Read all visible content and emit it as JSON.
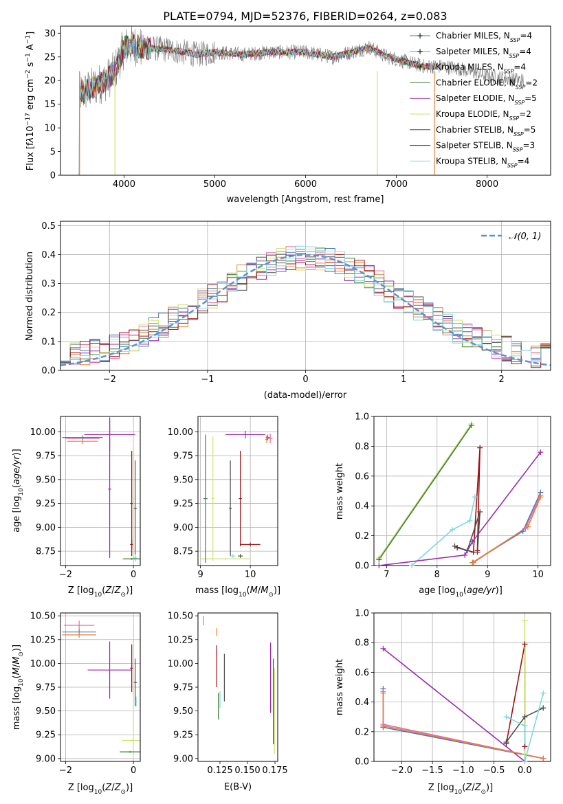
{
  "chart_data": [
    {
      "id": "spectrum",
      "type": "line",
      "title": "PLATE=0794, MJD=52376, FIBERID=0264, z=0.083",
      "xlabel": "wavelength [Angstrom, rest frame]",
      "ylabel": "Flux [f_λ 10^-17 erg cm^-2 s^-1 A^-1]",
      "xlim": [
        3300,
        8700
      ],
      "ylim": [
        0,
        31.5
      ],
      "xticks": [
        4000,
        5000,
        6000,
        7000,
        8000
      ],
      "yticks": [
        0,
        5,
        10,
        15,
        20,
        25,
        30
      ],
      "grid": false,
      "legend_position": "top-right",
      "data_range": [
        3500,
        8400
      ],
      "continuum": {
        "x": [
          3500,
          3600,
          3700,
          3800,
          3900,
          4000,
          4100,
          4200,
          4500,
          4800,
          5000,
          5300,
          5600,
          6000,
          6300,
          6500,
          6700,
          6900,
          7100,
          7300,
          7500,
          7700,
          8000,
          8400
        ],
        "y": [
          17,
          18,
          19,
          20,
          22,
          27,
          27.5,
          27,
          26.5,
          25.5,
          26,
          25.5,
          26,
          26,
          25,
          26,
          27,
          25,
          24,
          23,
          23,
          22.5,
          21,
          20
        ]
      },
      "series": [
        {
          "name": "Chabrier MILES, N_SSP=4",
          "color": "#4a78c2"
        },
        {
          "name": "Salpeter MILES, N_SSP=4",
          "color": "#e26aa6"
        },
        {
          "name": "Kroupa MILES, N_SSP=4",
          "color": "#e88035"
        },
        {
          "name": "Chabrier ELODIE, N_SSP=2",
          "color": "#3b7d3b"
        },
        {
          "name": "Salpeter ELODIE, N_SSP=5",
          "color": "#9a2bb0"
        },
        {
          "name": "Kroupa ELODIE, N_SSP=2",
          "color": "#cfe36c"
        },
        {
          "name": "Chabrier STELIB, N_SSP=5",
          "color": "#4d4d4d"
        },
        {
          "name": "Salpeter STELIB, N_SSP=3",
          "color": "#a01010"
        },
        {
          "name": "Kroupa STELIB, N_SSP=4",
          "color": "#7fd7dd"
        }
      ]
    },
    {
      "id": "residuals",
      "type": "histogram",
      "xlabel": "(data-model)/error",
      "ylabel": "Normed distribution",
      "xlim": [
        -2.5,
        2.5
      ],
      "ylim": [
        0,
        0.515
      ],
      "xticks": [
        -2,
        -1,
        0,
        1,
        2
      ],
      "yticks": [
        0.0,
        0.1,
        0.2,
        0.3,
        0.4,
        0.5
      ],
      "grid": true,
      "bin_width": 0.1,
      "legend": {
        "label": "𝒩(0, 1)",
        "position": "top-right"
      },
      "gaussian": {
        "mean": 0,
        "sigma": 1,
        "color": "#5b8fd9"
      }
    },
    {
      "id": "age-vs-Z",
      "type": "errorbar",
      "xlabel": "Z [log10(Z/Z⊙)]",
      "ylabel": "age  [log10(age/yr)]",
      "xlim": [
        -2.15,
        0.2
      ],
      "ylim": [
        8.6,
        10.16
      ],
      "xticks": [
        -2,
        0
      ],
      "yticks": [
        8.75,
        9.0,
        9.25,
        9.5,
        9.75,
        10.0
      ],
      "grid": true,
      "points": [
        {
          "x": -1.5,
          "xerr": 0.5,
          "y": 9.93,
          "yerr": 0.02,
          "color": "#e26aa6"
        },
        {
          "x": -1.5,
          "xerr": 0.45,
          "y": 9.9,
          "yerr": 0.03,
          "color": "#e88035"
        },
        {
          "x": -1.5,
          "xerr": 0.6,
          "y": 9.94,
          "yerr": 0.02,
          "color": "#4a78c2"
        },
        {
          "x": -0.7,
          "xerr": 0.75,
          "y": 9.97,
          "yerr": 0.18,
          "color": "#9a2bb0"
        },
        {
          "x": -0.7,
          "xerr": 0.05,
          "y": 9.4,
          "yerr": 0.72,
          "color": "#9a2bb0"
        },
        {
          "x": -0.05,
          "xerr": 0.05,
          "y": 9.25,
          "yerr": 0.55,
          "color": "#a01010"
        },
        {
          "x": -0.05,
          "xerr": 0.05,
          "y": 8.82,
          "yerr": 0.05,
          "color": "#a01010"
        },
        {
          "x": 0.05,
          "xerr": 0.05,
          "y": 9.2,
          "yerr": 0.5,
          "color": "#4d4d4d"
        },
        {
          "x": 0.0,
          "xerr": 0.35,
          "y": 8.67,
          "yerr": 0.01,
          "color": "#cfe36c"
        },
        {
          "x": 0.0,
          "xerr": 0.02,
          "y": 9.3,
          "yerr": 0.6,
          "color": "#cfe36c"
        },
        {
          "x": 0.05,
          "xerr": 0.05,
          "y": 8.68,
          "yerr": 0.04,
          "color": "#7fd7dd"
        },
        {
          "x": -0.05,
          "xerr": 0.25,
          "y": 8.67,
          "yerr": 0.01,
          "color": "#3b7d3b"
        }
      ]
    },
    {
      "id": "age-vs-mass",
      "type": "errorbar",
      "xlabel": "mass [log10(M/M⊙)]",
      "ylabel": "",
      "xlim": [
        8.95,
        10.55
      ],
      "ylim": [
        8.6,
        10.16
      ],
      "xticks": [
        9,
        10
      ],
      "yticks": [
        8.75,
        9.0,
        9.25,
        9.5,
        9.75,
        10.0
      ],
      "grid": true,
      "points": [
        {
          "x": 10.4,
          "xerr": 0.05,
          "y": 9.93,
          "yerr": 0.05,
          "color": "#e26aa6"
        },
        {
          "x": 10.33,
          "xerr": 0.03,
          "y": 9.92,
          "yerr": 0.04,
          "color": "#e88035"
        },
        {
          "x": 10.35,
          "xerr": 0.04,
          "y": 9.94,
          "yerr": 0.03,
          "color": "#4a78c2"
        },
        {
          "x": 9.9,
          "xerr": 0.4,
          "y": 9.97,
          "yerr": 0.04,
          "color": "#9a2bb0"
        },
        {
          "x": 9.8,
          "xerr": 0.03,
          "y": 9.3,
          "yerr": 0.5,
          "color": "#a01010"
        },
        {
          "x": 10.0,
          "xerr": 0.2,
          "y": 8.82,
          "yerr": 0.02,
          "color": "#a01010"
        },
        {
          "x": 9.6,
          "xerr": 0.03,
          "y": 9.2,
          "yerr": 0.5,
          "color": "#4d4d4d"
        },
        {
          "x": 9.25,
          "xerr": 0.03,
          "y": 9.3,
          "yerr": 0.65,
          "color": "#cfe36c"
        },
        {
          "x": 9.5,
          "xerr": 0.5,
          "y": 8.67,
          "yerr": 0.01,
          "color": "#cfe36c"
        },
        {
          "x": 9.1,
          "xerr": 0.04,
          "y": 9.3,
          "yerr": 0.67,
          "color": "#3b7d3b"
        },
        {
          "x": 9.65,
          "xerr": 0.05,
          "y": 8.7,
          "yerr": 0.02,
          "color": "#7fd7dd"
        },
        {
          "x": 9.8,
          "xerr": 0.05,
          "y": 8.7,
          "yerr": 0.02,
          "color": "#4d4d4d"
        }
      ]
    },
    {
      "id": "weight-vs-age",
      "type": "line",
      "xlabel": "age  [log10(age/yr)]",
      "ylabel": "mass weight",
      "xlim": [
        6.75,
        10.25
      ],
      "ylim": [
        0,
        1
      ],
      "xticks": [
        7,
        8,
        9,
        10
      ],
      "yticks": [
        0.0,
        0.2,
        0.4,
        0.6,
        0.8,
        1.0
      ],
      "grid": true,
      "series": [
        {
          "color": "#cfe36c",
          "x": [
            6.85,
            8.68
          ],
          "y": [
            0.05,
            0.95
          ]
        },
        {
          "color": "#3b7d3b",
          "x": [
            6.85,
            8.68
          ],
          "y": [
            0.04,
            0.94
          ]
        },
        {
          "color": "#a01010",
          "x": [
            8.4,
            8.72,
            8.85,
            8.8
          ],
          "y": [
            0.12,
            0.09,
            0.79,
            0.1
          ]
        },
        {
          "color": "#4d4d4d",
          "x": [
            8.35,
            8.6,
            8.85,
            8.8
          ],
          "y": [
            0.13,
            0.1,
            0.36,
            0.09
          ]
        },
        {
          "color": "#7fd7dd",
          "x": [
            7.5,
            8.3,
            8.65,
            8.75
          ],
          "y": [
            0.0,
            0.24,
            0.3,
            0.46
          ]
        },
        {
          "color": "#9a2bb0",
          "x": [
            6.85,
            8.55,
            8.7,
            10.05
          ],
          "y": [
            0.0,
            0.07,
            0.16,
            0.76
          ]
        },
        {
          "color": "#4a78c2",
          "x": [
            8.7,
            9.7,
            10.05
          ],
          "y": [
            0.02,
            0.23,
            0.49
          ]
        },
        {
          "color": "#e26aa6",
          "x": [
            8.72,
            9.75,
            10.05
          ],
          "y": [
            0.02,
            0.25,
            0.47
          ]
        },
        {
          "color": "#e88035",
          "x": [
            8.7,
            9.8,
            10.05
          ],
          "y": [
            0.02,
            0.26,
            0.46
          ]
        }
      ]
    },
    {
      "id": "mass-vs-Z",
      "type": "errorbar",
      "xlabel": "Z [log10(Z/Z⊙)]",
      "ylabel": "mass [log10(M/M⊙)]",
      "xlim": [
        -2.15,
        0.2
      ],
      "ylim": [
        8.97,
        10.53
      ],
      "xticks": [
        -2,
        0
      ],
      "yticks": [
        9.0,
        9.25,
        9.5,
        9.75,
        10.0,
        10.25,
        10.5
      ],
      "grid": true,
      "points": [
        {
          "x": -1.6,
          "xerr": 0.45,
          "y": 10.4,
          "yerr": 0.05,
          "color": "#e26aa6"
        },
        {
          "x": -1.6,
          "xerr": 0.5,
          "y": 10.33,
          "yerr": 0.03,
          "color": "#4a78c2"
        },
        {
          "x": -1.6,
          "xerr": 0.5,
          "y": 10.3,
          "yerr": 0.03,
          "color": "#e88035"
        },
        {
          "x": -0.7,
          "xerr": 0.65,
          "y": 9.93,
          "yerr": 0.3,
          "color": "#9a2bb0"
        },
        {
          "x": -0.05,
          "xerr": 0.05,
          "y": 9.95,
          "yerr": 0.25,
          "color": "#a01010"
        },
        {
          "x": 0.05,
          "xerr": 0.05,
          "y": 9.8,
          "yerr": 0.25,
          "color": "#4d4d4d"
        },
        {
          "x": 0.0,
          "xerr": 0.02,
          "y": 9.5,
          "yerr": 0.5,
          "color": "#cfe36c"
        },
        {
          "x": -0.05,
          "xerr": 0.3,
          "y": 9.19,
          "yerr": 0.01,
          "color": "#cfe36c"
        },
        {
          "x": -0.1,
          "xerr": 0.3,
          "y": 9.07,
          "yerr": 0.01,
          "color": "#3b7d3b"
        },
        {
          "x": 0.08,
          "xerr": 0.03,
          "y": 9.6,
          "yerr": 0.05,
          "color": "#7fd7dd"
        }
      ]
    },
    {
      "id": "mass-vs-ebv",
      "type": "errorbar",
      "xlabel": "E(B-V)",
      "ylabel": "",
      "xlim": [
        0.105,
        0.1775
      ],
      "ylim": [
        8.97,
        10.53
      ],
      "xticks": [
        0.125,
        0.15,
        0.175
      ],
      "yticks": [
        9.0,
        9.25,
        9.5,
        9.75,
        10.0,
        10.25,
        10.5
      ],
      "grid": false,
      "points": [
        {
          "x": 0.11,
          "y": 10.45,
          "yerr": 0.05,
          "color": "#e26aa6"
        },
        {
          "x": 0.122,
          "y": 10.33,
          "yerr": 0.04,
          "color": "#e88035"
        },
        {
          "x": 0.122,
          "y": 9.97,
          "yerr": 0.22,
          "color": "#a01010"
        },
        {
          "x": 0.1235,
          "y": 9.55,
          "yerr": 0.14,
          "color": "#3b7d3b"
        },
        {
          "x": 0.125,
          "y": 9.62,
          "yerr": 0.09,
          "color": "#7fd7dd"
        },
        {
          "x": 0.129,
          "y": 9.85,
          "yerr": 0.25,
          "color": "#4d4d4d"
        },
        {
          "x": 0.171,
          "y": 9.85,
          "yerr": 0.37,
          "color": "#9a2bb0"
        },
        {
          "x": 0.1735,
          "y": 9.6,
          "yerr": 0.45,
          "color": "#4d4d4d"
        },
        {
          "x": 0.1745,
          "y": 9.5,
          "yerr": 0.45,
          "color": "#cfe36c"
        }
      ]
    },
    {
      "id": "weight-vs-Z",
      "type": "line",
      "xlabel": "Z [log10(Z/Z⊙)]",
      "ylabel": "mass weight",
      "xlim": [
        -2.45,
        0.42
      ],
      "ylim": [
        0,
        1
      ],
      "xticks": [
        -2.0,
        -1.5,
        -1.0,
        -0.5,
        0.0
      ],
      "yticks": [
        0.0,
        0.2,
        0.4,
        0.6,
        0.8,
        1.0
      ],
      "grid": true,
      "series": [
        {
          "color": "#9a2bb0",
          "x": [
            -2.3,
            0.0
          ],
          "y": [
            0.76,
            0.0
          ]
        },
        {
          "color": "#4a78c2",
          "x": [
            -2.3,
            -2.3,
            0.3
          ],
          "y": [
            0.49,
            0.23,
            0.02
          ]
        },
        {
          "color": "#e26aa6",
          "x": [
            -2.3,
            -2.3,
            0.3
          ],
          "y": [
            0.47,
            0.25,
            0.02
          ]
        },
        {
          "color": "#e88035",
          "x": [
            -2.3,
            -2.3,
            0.3
          ],
          "y": [
            0.46,
            0.24,
            0.02
          ]
        },
        {
          "color": "#a01010",
          "x": [
            -0.3,
            0.0,
            0.0
          ],
          "y": [
            0.12,
            0.79,
            0.1
          ]
        },
        {
          "color": "#4d4d4d",
          "x": [
            -0.3,
            0.0,
            0.3
          ],
          "y": [
            0.13,
            0.3,
            0.36
          ]
        },
        {
          "color": "#cfe36c",
          "x": [
            0.0,
            0.0
          ],
          "y": [
            0.05,
            0.95
          ]
        },
        {
          "color": "#7fd7dd",
          "x": [
            -0.3,
            0.0,
            0.0,
            0.3
          ],
          "y": [
            0.3,
            0.24,
            0.0,
            0.46
          ]
        }
      ]
    }
  ]
}
